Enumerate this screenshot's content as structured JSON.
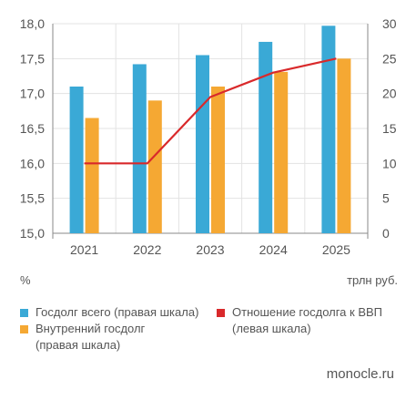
{
  "chart_data": {
    "type": "bar",
    "categories": [
      "2021",
      "2022",
      "2023",
      "2024",
      "2025"
    ],
    "left_axis": {
      "ylim": [
        15.0,
        18.0
      ],
      "ticks": [
        "15,0",
        "15,5",
        "16,0",
        "16,5",
        "17,0",
        "17,5",
        "18,0"
      ],
      "unit": "%"
    },
    "right_axis": {
      "ylim": [
        0,
        30
      ],
      "ticks": [
        "0",
        "5",
        "10",
        "15",
        "20",
        "25",
        "30"
      ],
      "unit": "трлн руб."
    },
    "series": [
      {
        "name": "Госдолг всего (правая шкала)",
        "type": "bar",
        "axis": "right",
        "color": "#3aa9d6",
        "values": [
          21.0,
          24.2,
          25.5,
          27.4,
          29.7
        ]
      },
      {
        "name": "Внутренний госдолг (правая шкала)",
        "type": "bar",
        "axis": "right",
        "color": "#f5a833",
        "values": [
          16.5,
          19.0,
          21.0,
          23.1,
          25.0
        ]
      },
      {
        "name": "Отношение госдолга к ВВП (левая шкала)",
        "type": "line",
        "axis": "left",
        "color": "#d9292b",
        "values": [
          16.0,
          16.0,
          16.95,
          17.3,
          17.5
        ]
      }
    ],
    "grid": true
  },
  "legend": [
    {
      "lines": [
        "Госдолг всего (правая шкала)"
      ],
      "color": "#3aa9d6"
    },
    {
      "lines": [
        "Внутренний госдолг",
        "(правая шкала)"
      ],
      "color": "#f5a833"
    },
    {
      "lines": [
        "Отношение госдолга к ВВП",
        "(левая шкала)"
      ],
      "color": "#d9292b"
    }
  ],
  "units": {
    "left": "%",
    "right": "трлн руб."
  },
  "source": "monocle.ru"
}
